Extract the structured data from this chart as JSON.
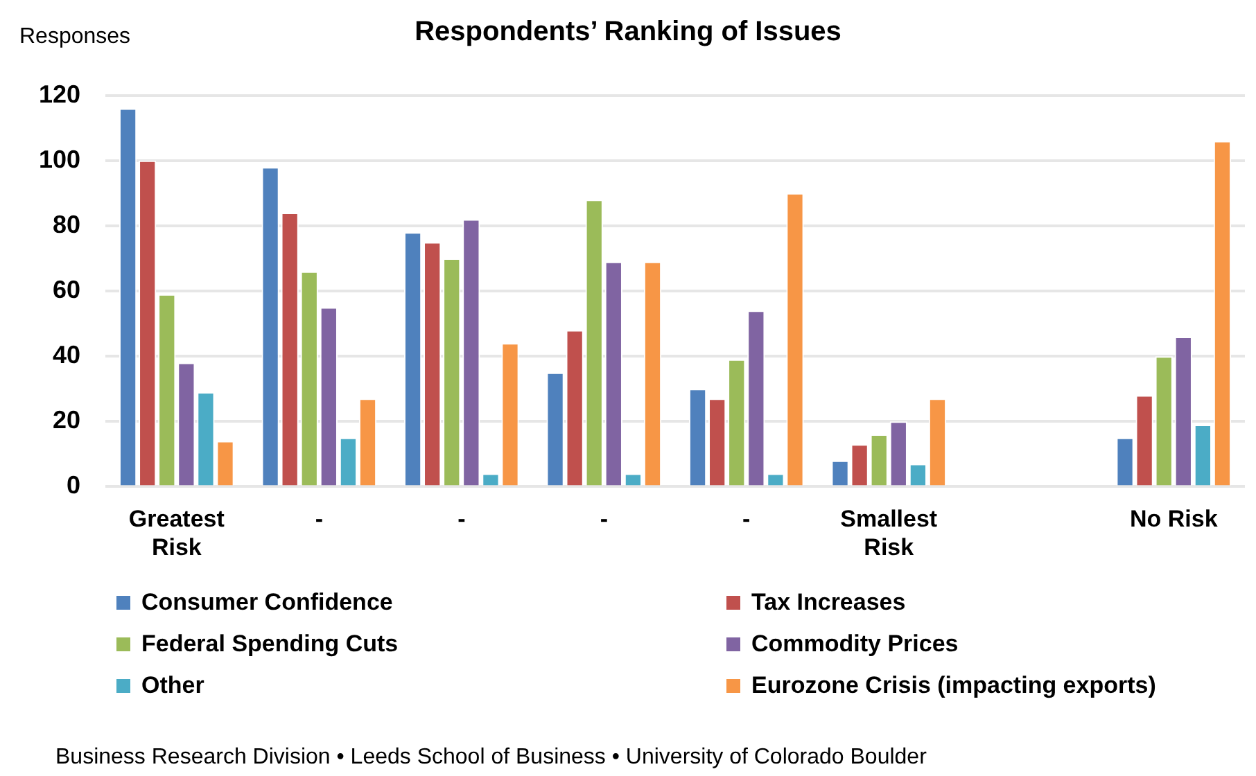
{
  "chart_data": {
    "type": "bar",
    "title": "Respondents’ Ranking of Issues",
    "ylabel": "Responses",
    "categories": [
      "Greatest Risk",
      "-",
      "-",
      "-",
      "-",
      "Smallest Risk",
      null,
      "No Risk"
    ],
    "series": [
      {
        "name": "Consumer Confidence",
        "color": "#4f81bd",
        "values": [
          116,
          98,
          78,
          35,
          30,
          8,
          null,
          15
        ]
      },
      {
        "name": "Tax Increases",
        "color": "#c0504d",
        "values": [
          100,
          84,
          75,
          48,
          27,
          13,
          null,
          28
        ]
      },
      {
        "name": "Federal Spending Cuts",
        "color": "#9bbb59",
        "values": [
          59,
          66,
          70,
          88,
          39,
          16,
          null,
          40
        ]
      },
      {
        "name": "Commodity Prices",
        "color": "#8064a2",
        "values": [
          38,
          55,
          82,
          69,
          54,
          20,
          null,
          46
        ]
      },
      {
        "name": "Other",
        "color": "#4bacc6",
        "values": [
          29,
          15,
          4,
          4,
          4,
          7,
          null,
          19
        ]
      },
      {
        "name": "Eurozone Crisis (impacting exports)",
        "color": "#f79646",
        "values": [
          14,
          27,
          44,
          69,
          90,
          27,
          null,
          106
        ]
      }
    ],
    "ylim": [
      0,
      120
    ],
    "yticks": [
      0,
      20,
      40,
      60,
      80,
      100,
      120
    ],
    "grid": "y",
    "legend": "bottom",
    "annotations": [
      "Business Research Division • Leeds School of Business • University of Colorado Boulder"
    ]
  }
}
